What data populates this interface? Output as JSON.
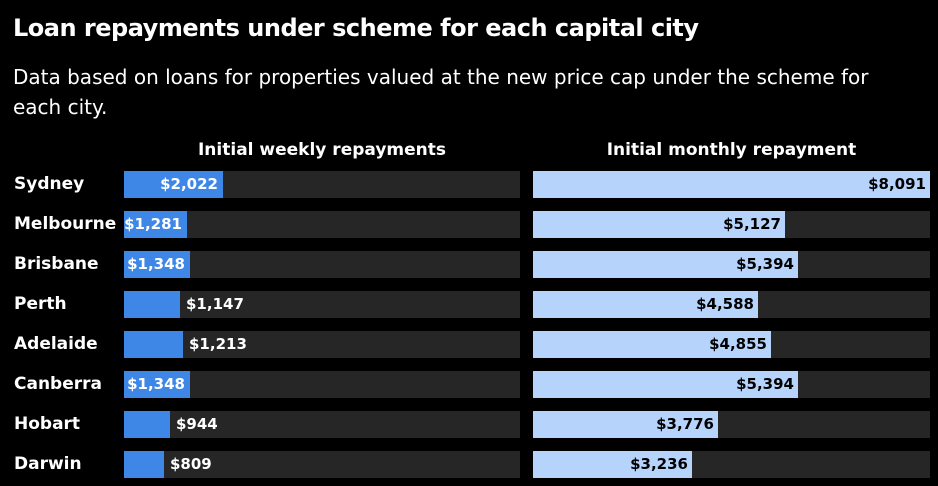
{
  "chart_data": {
    "type": "bar",
    "title": "Loan repayments under scheme for each capital city",
    "subtitle": "Data based on loans for properties valued at the new price cap under the scheme for each city.",
    "categories": [
      "Sydney",
      "Melbourne",
      "Brisbane",
      "Perth",
      "Adelaide",
      "Canberra",
      "Hobart",
      "Darwin"
    ],
    "series": [
      {
        "name": "Initial weekly repayments",
        "values": [
          2022,
          1281,
          1348,
          1147,
          1213,
          1348,
          944,
          809
        ],
        "labels": [
          "$2,022",
          "$1,281",
          "$1,348",
          "$1,147",
          "$1,213",
          "$1,348",
          "$944",
          "$809"
        ],
        "max": 8091,
        "color": "#3f87e6"
      },
      {
        "name": "Initial monthly repayment",
        "values": [
          8091,
          5127,
          5394,
          4588,
          4855,
          5394,
          3776,
          3236
        ],
        "labels": [
          "$8,091",
          "$5,127",
          "$5,394",
          "$4,588",
          "$4,855",
          "$5,394",
          "$3,776",
          "$3,236"
        ],
        "max": 8091,
        "color": "#b6d4fb"
      }
    ],
    "orientation": "horizontal",
    "grid": false
  }
}
